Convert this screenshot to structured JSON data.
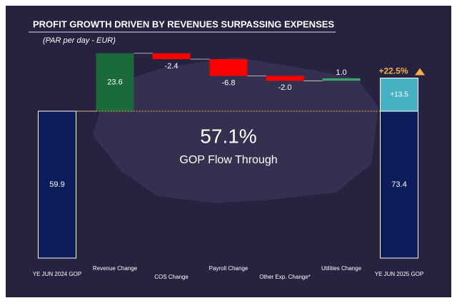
{
  "chart_data": {
    "type": "waterfall",
    "title": "PROFIT GROWTH DRIVEN BY REVENUES SURPASSING EXPENSES",
    "subtitle": "(PAR per day - EUR)",
    "categories": [
      "YE JUN 2024 GOP",
      "Revenue Change",
      "COS Change",
      "Payroll Change",
      "Other Exp. Change*",
      "Utilities Change",
      "YE JUN 2025 GOP"
    ],
    "values": [
      59.9,
      23.6,
      -2.4,
      -6.8,
      -2.0,
      1.0,
      73.4
    ],
    "value_labels": [
      "59.9",
      "23.6",
      "-2.4",
      "-6.8",
      "-2.0",
      "1.0",
      "73.4"
    ],
    "colors": [
      "#0c1d5c",
      "#1a6a3c",
      "#ff0000",
      "#ff0000",
      "#ff0000",
      "#3aa56c",
      "#0c1d5c"
    ],
    "increase": {
      "value": 13.5,
      "label": "+13.5"
    },
    "increase_color": "#46b2c4",
    "increase_pct": {
      "value": 22.5,
      "label": "+22.5%"
    },
    "flow_through": {
      "value": 57.1,
      "label": "57.1%"
    },
    "flow_through_label": "GOP Flow Through"
  }
}
